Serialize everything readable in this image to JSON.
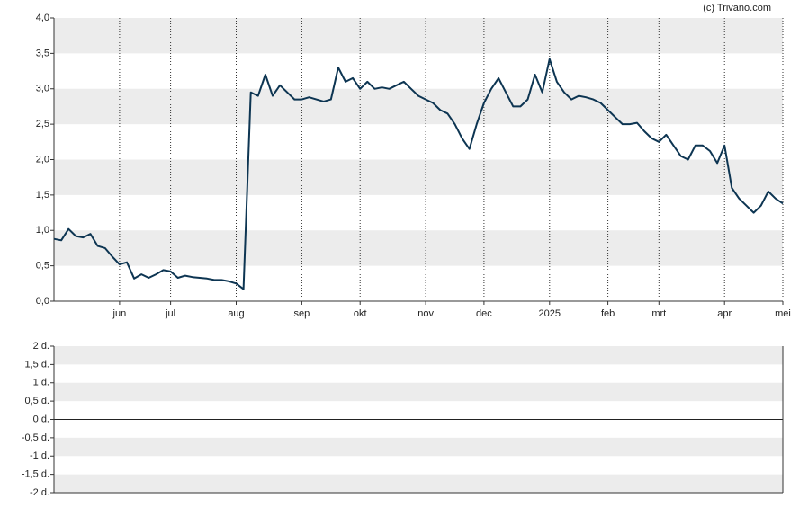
{
  "credit": "(c) Trivano.com",
  "chart_data": [
    {
      "type": "line",
      "color": "#0d3552",
      "categories": [
        null,
        null,
        null,
        null,
        null,
        null,
        null,
        null,
        null,
        "jun",
        null,
        null,
        null,
        null,
        null,
        null,
        "jul",
        null,
        null,
        null,
        null,
        null,
        null,
        null,
        null,
        "aug",
        null,
        null,
        null,
        null,
        null,
        null,
        null,
        null,
        "sep",
        null,
        null,
        null,
        null,
        null,
        null,
        null,
        "okt",
        null,
        null,
        null,
        null,
        null,
        null,
        null,
        null,
        "nov",
        null,
        null,
        null,
        null,
        null,
        null,
        null,
        "dec",
        null,
        null,
        null,
        null,
        null,
        null,
        null,
        null,
        "2025",
        null,
        null,
        null,
        null,
        null,
        null,
        null,
        "feb",
        null,
        null,
        null,
        null,
        null,
        null,
        "mrt",
        null,
        null,
        null,
        null,
        null,
        null,
        null,
        null,
        "apr",
        null,
        null,
        null,
        null,
        null,
        null,
        null,
        "mei"
      ],
      "values": [
        0.88,
        0.86,
        1.02,
        0.92,
        0.9,
        0.95,
        0.78,
        0.75,
        0.63,
        0.52,
        0.55,
        0.32,
        0.38,
        0.33,
        0.38,
        0.44,
        0.42,
        0.33,
        0.36,
        0.34,
        0.33,
        0.32,
        0.3,
        0.3,
        0.28,
        0.25,
        0.17,
        2.95,
        2.9,
        3.2,
        2.9,
        3.05,
        2.95,
        2.85,
        2.85,
        2.88,
        2.85,
        2.82,
        2.85,
        3.3,
        3.1,
        3.15,
        3.0,
        3.1,
        3.0,
        3.02,
        3.0,
        3.05,
        3.1,
        3.0,
        2.9,
        2.85,
        2.8,
        2.7,
        2.65,
        2.5,
        2.3,
        2.15,
        2.5,
        2.8,
        3.0,
        3.15,
        2.95,
        2.75,
        2.75,
        2.85,
        3.2,
        2.95,
        3.42,
        3.1,
        2.95,
        2.85,
        2.9,
        2.88,
        2.85,
        2.8,
        2.7,
        2.6,
        2.5,
        2.5,
        2.52,
        2.4,
        2.3,
        2.25,
        2.35,
        2.2,
        2.05,
        2.0,
        2.2,
        2.2,
        2.12,
        1.95,
        2.2,
        1.6,
        1.45,
        1.35,
        1.25,
        1.35,
        1.55,
        1.45,
        1.38
      ],
      "ylim": [
        0,
        4
      ],
      "yticks": [
        {
          "value": 0,
          "label": "0,0"
        },
        {
          "value": 0.5,
          "label": "0,5"
        },
        {
          "value": 1,
          "label": "1,0"
        },
        {
          "value": 1.5,
          "label": "1,5"
        },
        {
          "value": 2,
          "label": "2,0"
        },
        {
          "value": 2.5,
          "label": "2,5"
        },
        {
          "value": 3,
          "label": "3,0"
        },
        {
          "value": 3.5,
          "label": "3,5"
        },
        {
          "value": 4,
          "label": "4,0"
        }
      ]
    },
    {
      "type": "line",
      "ylim": [
        -2,
        2
      ],
      "yticks": [
        {
          "value": -2,
          "label": "-2 d."
        },
        {
          "value": -1.5,
          "label": "-1,5 d."
        },
        {
          "value": -1,
          "label": "-1 d."
        },
        {
          "value": -0.5,
          "label": "-0,5 d."
        },
        {
          "value": 0,
          "label": "0 d."
        },
        {
          "value": 0.5,
          "label": "0,5 d."
        },
        {
          "value": 1,
          "label": "1 d."
        },
        {
          "value": 1.5,
          "label": "1,5 d."
        },
        {
          "value": 2,
          "label": "2 d."
        }
      ]
    }
  ]
}
